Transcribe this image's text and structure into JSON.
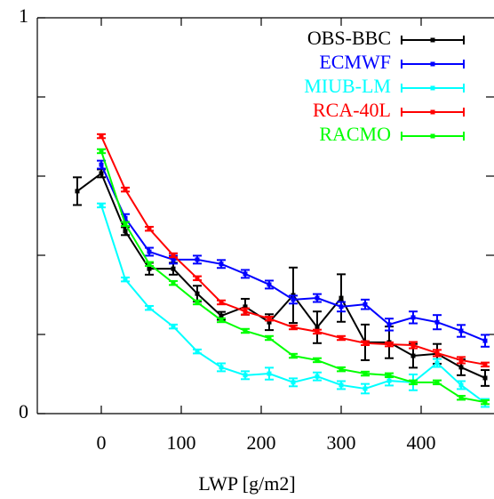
{
  "chart_data": {
    "type": "line",
    "xlabel": "LWP [g/m2]",
    "xlim": [
      -80,
      490
    ],
    "xticks": [
      0,
      100,
      200,
      300,
      400
    ],
    "ylim": [
      0,
      1
    ],
    "yticks": [
      0,
      1
    ],
    "yminorticks": [
      0.2,
      0.4,
      0.6,
      0.8
    ],
    "legend": "top-right",
    "series": [
      {
        "name": "OBS-BBC",
        "color": "#000000",
        "x": [
          -30,
          0,
          30,
          60,
          90,
          120,
          150,
          180,
          210,
          240,
          270,
          300,
          330,
          360,
          390,
          420,
          450,
          480
        ],
        "values": [
          0.562,
          0.607,
          0.461,
          0.366,
          0.366,
          0.303,
          0.247,
          0.27,
          0.231,
          0.299,
          0.218,
          0.292,
          0.18,
          0.18,
          0.146,
          0.151,
          0.117,
          0.09
        ],
        "errors": [
          0.035,
          0.01,
          0.01,
          0.015,
          0.015,
          0.02,
          0.01,
          0.02,
          0.02,
          0.07,
          0.04,
          0.06,
          0.045,
          0.04,
          0.03,
          0.025,
          0.02,
          0.02
        ]
      },
      {
        "name": "ECMWF",
        "color": "#0000ff",
        "x": [
          0,
          30,
          60,
          90,
          120,
          150,
          180,
          210,
          240,
          270,
          300,
          330,
          360,
          390,
          420,
          450,
          480
        ],
        "values": [
          0.629,
          0.494,
          0.409,
          0.389,
          0.389,
          0.378,
          0.353,
          0.326,
          0.288,
          0.292,
          0.27,
          0.276,
          0.225,
          0.243,
          0.231,
          0.209,
          0.184
        ],
        "errors": [
          0.01,
          0.01,
          0.01,
          0.01,
          0.01,
          0.01,
          0.01,
          0.01,
          0.01,
          0.01,
          0.012,
          0.012,
          0.015,
          0.015,
          0.018,
          0.015,
          0.015
        ]
      },
      {
        "name": "MIUB-LM",
        "color": "#00ffff",
        "x": [
          0,
          30,
          60,
          90,
          120,
          150,
          180,
          210,
          240,
          270,
          300,
          330,
          360,
          390,
          420,
          450,
          480
        ],
        "values": [
          0.526,
          0.339,
          0.267,
          0.22,
          0.157,
          0.117,
          0.097,
          0.101,
          0.079,
          0.094,
          0.072,
          0.063,
          0.083,
          0.079,
          0.128,
          0.072,
          0.027
        ],
        "errors": [
          0.005,
          0.005,
          0.005,
          0.005,
          0.005,
          0.01,
          0.01,
          0.015,
          0.01,
          0.01,
          0.01,
          0.012,
          0.012,
          0.02,
          0.01,
          0.01,
          0.01
        ]
      },
      {
        "name": "RCA-40L",
        "color": "#ff0000",
        "x": [
          0,
          30,
          60,
          90,
          120,
          150,
          180,
          210,
          240,
          270,
          300,
          330,
          360,
          390,
          420,
          450,
          480
        ],
        "values": [
          0.701,
          0.566,
          0.467,
          0.4,
          0.342,
          0.281,
          0.258,
          0.24,
          0.218,
          0.207,
          0.191,
          0.178,
          0.175,
          0.173,
          0.153,
          0.135,
          0.124
        ],
        "errors": [
          0.005,
          0.005,
          0.005,
          0.005,
          0.005,
          0.005,
          0.008,
          0.005,
          0.005,
          0.005,
          0.005,
          0.005,
          0.005,
          0.008,
          0.008,
          0.008,
          0.005
        ]
      },
      {
        "name": "RACMO",
        "color": "#00ff00",
        "x": [
          0,
          30,
          60,
          90,
          120,
          150,
          180,
          210,
          240,
          270,
          300,
          330,
          360,
          390,
          420,
          450,
          480
        ],
        "values": [
          0.663,
          0.479,
          0.378,
          0.33,
          0.281,
          0.236,
          0.209,
          0.191,
          0.146,
          0.135,
          0.112,
          0.101,
          0.097,
          0.079,
          0.079,
          0.04,
          0.029
        ],
        "errors": [
          0.005,
          0.005,
          0.005,
          0.005,
          0.005,
          0.005,
          0.005,
          0.005,
          0.005,
          0.005,
          0.005,
          0.005,
          0.005,
          0.005,
          0.005,
          0.005,
          0.005
        ]
      }
    ]
  }
}
